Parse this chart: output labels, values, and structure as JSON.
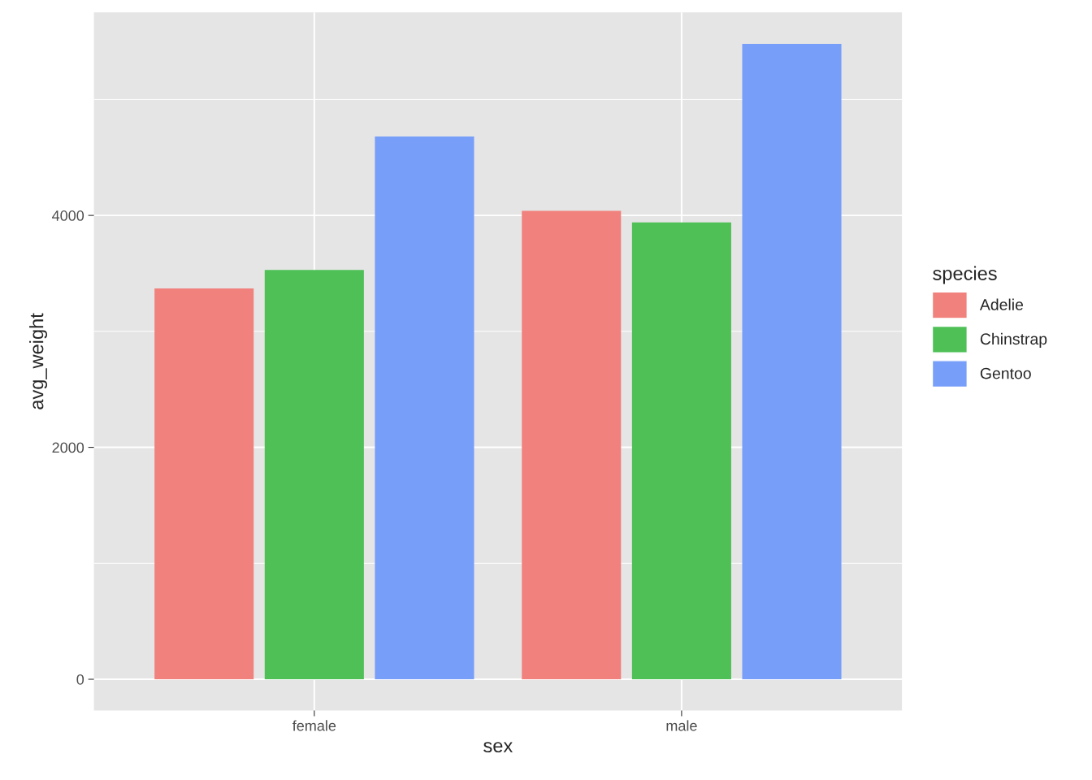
{
  "chart_data": {
    "type": "bar",
    "xlabel": "sex",
    "ylabel": "avg_weight",
    "legend_title": "species",
    "categories": [
      "female",
      "male"
    ],
    "series": [
      {
        "name": "Adelie",
        "color": "#f1817c",
        "values": [
          3370,
          4040
        ]
      },
      {
        "name": "Chinstrap",
        "color": "#4ec056",
        "values": [
          3530,
          3940
        ]
      },
      {
        "name": "Gentoo",
        "color": "#779ef8",
        "values": [
          4680,
          5480
        ]
      }
    ],
    "ylim": [
      -270,
      5750
    ],
    "yticks": [
      0,
      {
        "value": 1000,
        "label": null
      },
      2000,
      {
        "value": 3000,
        "label": null
      },
      4000,
      {
        "value": 5000,
        "label": null
      }
    ],
    "grid": true,
    "legend": "right"
  }
}
